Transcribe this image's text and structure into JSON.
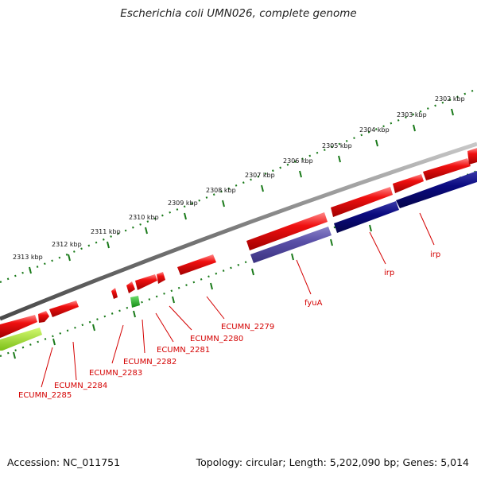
{
  "header": {
    "title": "Escherichia coli UMN026, complete genome"
  },
  "footer": {
    "accession": "Accession: NC_011751",
    "summary": "Topology: circular; Length: 5,202,090 bp; Genes: 5,014"
  },
  "scale": {
    "ticks": [
      "2302 kbp",
      "2303 kbp",
      "2304 kbp",
      "2305 kbp",
      "2306 kbp",
      "2307 kbp",
      "2308 kbp",
      "2309 kbp",
      "2310 kbp",
      "2311 kbp",
      "2312 kbp",
      "2313 kbp"
    ]
  },
  "gene_labels": [
    "irp",
    "irp",
    "fyuA",
    "ECUMN_2279",
    "ECUMN_2280",
    "ECUMN_2281",
    "ECUMN_2282",
    "ECUMN_2283",
    "ECUMN_2284",
    "ECUMN_2285"
  ],
  "colors": {
    "forward_cds": "#e80000",
    "reverse_cds_dark": "#0a0a80",
    "reverse_cds_light": "#5a50a8",
    "green_feature": "#22b822",
    "lime_feature": "#a6e02a",
    "backbone": "#808080",
    "tick": "#1a7a1a",
    "label": "#d40000"
  }
}
